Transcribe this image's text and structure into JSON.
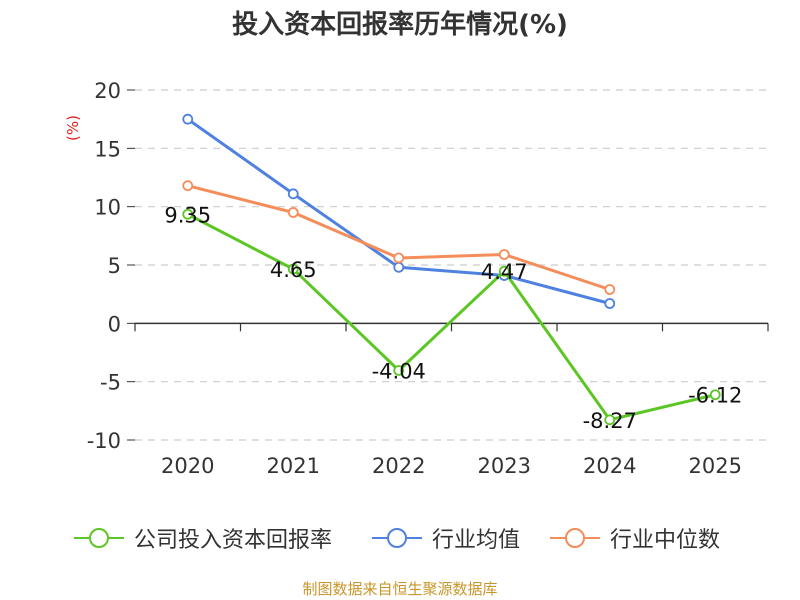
{
  "title": "投入资本回报率历年情况(%)",
  "source": "制图数据来自恒生聚源数据库",
  "chart_data": {
    "type": "line",
    "title": "投入资本回报率历年情况(%)",
    "ylabel": "(%)",
    "xlabel": "",
    "categories": [
      "2020",
      "2021",
      "2022",
      "2023",
      "2024",
      "2025"
    ],
    "ylim": [
      -10,
      20
    ],
    "yticks": [
      -10,
      -5,
      0,
      5,
      10,
      15,
      20
    ],
    "grid": "horizontal-dashed",
    "legend_position": "bottom",
    "series": [
      {
        "name": "公司投入资本回报率",
        "color": "#5cc625",
        "values": [
          9.35,
          4.65,
          -4.04,
          4.47,
          -8.27,
          -6.12
        ],
        "labels": [
          "9.35",
          "4.65",
          "-4.04",
          "4.47",
          "-8.27",
          "-6.12"
        ]
      },
      {
        "name": "行业均值",
        "color": "#4f81e0",
        "values": [
          17.5,
          11.1,
          4.8,
          4.1,
          1.7,
          null
        ]
      },
      {
        "name": "行业中位数",
        "color": "#f58d5a",
        "values": [
          11.8,
          9.5,
          5.6,
          5.9,
          2.9,
          null
        ]
      }
    ]
  }
}
